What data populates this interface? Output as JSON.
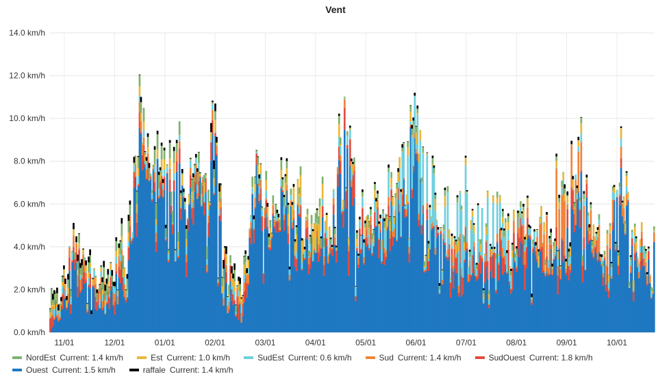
{
  "chart_data": {
    "type": "area",
    "title": "Vent",
    "xlabel": "",
    "ylabel": "",
    "ylim": [
      0,
      14
    ],
    "y_ticks": [
      "0.0 km/h",
      "2.0 km/h",
      "4.0 km/h",
      "6.0 km/h",
      "8.0 km/h",
      "10.0 km/h",
      "12.0 km/h",
      "14.0 km/h"
    ],
    "x_ticks": [
      "11/01",
      "12/01",
      "01/01",
      "02/01",
      "03/01",
      "04/01",
      "05/01",
      "06/01",
      "07/01",
      "08/01",
      "09/01",
      "10/01"
    ],
    "grid": true,
    "stacked": true,
    "legend_position": "bottom",
    "series": [
      {
        "name": "NordEst",
        "current": "Current: 1.4 km/h",
        "color": "#7eb26d",
        "peaks": [
          [
            0.0,
            1.0
          ],
          [
            0.02,
            0.4
          ],
          [
            0.1,
            0.6
          ],
          [
            0.16,
            0.8
          ],
          [
            0.22,
            0.7
          ],
          [
            0.34,
            0.5
          ],
          [
            0.4,
            0.5
          ],
          [
            0.47,
            0.4
          ],
          [
            0.54,
            0.3
          ],
          [
            0.62,
            0.3
          ],
          [
            0.7,
            0.3
          ],
          [
            0.8,
            0.3
          ],
          [
            0.88,
            0.3
          ],
          [
            0.95,
            0.2
          ]
        ]
      },
      {
        "name": "Est",
        "current": "Current: 1.0 km/h",
        "color": "#eab839",
        "peaks": [
          [
            0.05,
            0.3
          ],
          [
            0.18,
            0.5
          ],
          [
            0.26,
            0.6
          ],
          [
            0.37,
            0.5
          ],
          [
            0.44,
            1.4
          ],
          [
            0.49,
            0.4
          ],
          [
            0.58,
            0.6
          ],
          [
            0.68,
            0.5
          ],
          [
            0.74,
            0.4
          ],
          [
            0.86,
            0.5
          ],
          [
            0.94,
            0.5
          ]
        ]
      },
      {
        "name": "SudEst",
        "current": "Current: 0.6 km/h",
        "color": "#6ed0e0",
        "peaks": [
          [
            0.12,
            0.4
          ],
          [
            0.26,
            0.4
          ],
          [
            0.38,
            0.4
          ],
          [
            0.47,
            0.5
          ],
          [
            0.52,
            0.6
          ],
          [
            0.55,
            0.9
          ],
          [
            0.58,
            2.5
          ],
          [
            0.73,
            3.0
          ],
          [
            0.76,
            0.6
          ],
          [
            0.85,
            0.4
          ]
        ]
      },
      {
        "name": "Sud",
        "current": "Current: 1.4 km/h",
        "color": "#ef843c",
        "peaks": [
          [
            0.08,
            0.6
          ],
          [
            0.17,
            0.6
          ],
          [
            0.22,
            0.5
          ],
          [
            0.33,
            0.5
          ],
          [
            0.42,
            0.4
          ],
          [
            0.5,
            0.4
          ],
          [
            0.61,
            0.4
          ],
          [
            0.7,
            0.4
          ],
          [
            0.79,
            0.8
          ],
          [
            0.84,
            3.0
          ],
          [
            0.96,
            0.5
          ]
        ]
      },
      {
        "name": "SudOuest",
        "current": "Current: 1.8 km/h",
        "color": "#e24d42",
        "peaks": [
          [
            0.08,
            0.7
          ],
          [
            0.16,
            0.9
          ],
          [
            0.19,
            0.6
          ],
          [
            0.26,
            0.9
          ],
          [
            0.36,
            0.7
          ],
          [
            0.47,
            0.5
          ],
          [
            0.5,
            1.6
          ],
          [
            0.56,
            0.7
          ],
          [
            0.61,
            0.4
          ],
          [
            0.68,
            1.2
          ],
          [
            0.83,
            1.2
          ],
          [
            0.92,
            0.5
          ]
        ]
      },
      {
        "name": "Ouest",
        "current": "Current: 1.5 km/h",
        "color": "#1f78c1",
        "peaks": [
          [
            0.0,
            0.0
          ],
          [
            0.04,
            3.8
          ],
          [
            0.09,
            1.2
          ],
          [
            0.13,
            4.5
          ],
          [
            0.15,
            10.8
          ],
          [
            0.17,
            8.2
          ],
          [
            0.19,
            8.0
          ],
          [
            0.22,
            8.2
          ],
          [
            0.24,
            7.6
          ],
          [
            0.26,
            9.7
          ],
          [
            0.27,
            11.2
          ],
          [
            0.29,
            3.2
          ],
          [
            0.32,
            1.0
          ],
          [
            0.34,
            8.5
          ],
          [
            0.36,
            5.5
          ],
          [
            0.4,
            7.8
          ],
          [
            0.42,
            4.8
          ],
          [
            0.46,
            6.0
          ],
          [
            0.49,
            10.0
          ],
          [
            0.51,
            4.5
          ],
          [
            0.54,
            5.2
          ],
          [
            0.57,
            6.5
          ],
          [
            0.59,
            7.5
          ],
          [
            0.6,
            11.0
          ],
          [
            0.62,
            5.5
          ],
          [
            0.64,
            5.0
          ],
          [
            0.66,
            4.0
          ],
          [
            0.68,
            3.5
          ],
          [
            0.7,
            4.5
          ],
          [
            0.72,
            3.0
          ],
          [
            0.74,
            4.2
          ],
          [
            0.76,
            3.5
          ],
          [
            0.78,
            4.5
          ],
          [
            0.8,
            4.8
          ],
          [
            0.82,
            3.8
          ],
          [
            0.84,
            4.5
          ],
          [
            0.86,
            5.5
          ],
          [
            0.88,
            8.5
          ],
          [
            0.9,
            4.0
          ],
          [
            0.92,
            3.5
          ],
          [
            0.94,
            7.5
          ],
          [
            0.95,
            8.2
          ],
          [
            0.97,
            4.5
          ],
          [
            0.99,
            3.8
          ],
          [
            1.0,
            4.5
          ]
        ]
      },
      {
        "name": "raffale",
        "current": "Current: 1.4 km/h",
        "color": "#000000",
        "peaks": [
          [
            0.15,
            0.3
          ],
          [
            0.19,
            0.2
          ],
          [
            0.24,
            0.2
          ],
          [
            0.27,
            0.5
          ],
          [
            0.34,
            0.2
          ],
          [
            0.44,
            0.1
          ],
          [
            0.6,
            0.2
          ],
          [
            0.7,
            0.1
          ],
          [
            0.86,
            0.2
          ],
          [
            0.93,
            0.1
          ]
        ]
      }
    ]
  }
}
